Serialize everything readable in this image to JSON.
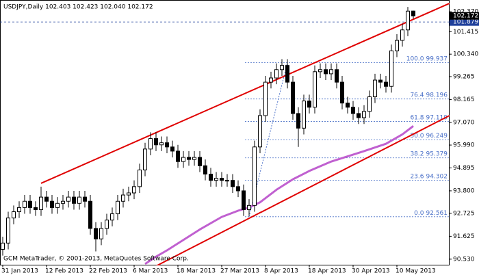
{
  "chart_data": {
    "type": "candlestick",
    "title": "USDJPY,Daily  102.403 102.423 102.040 102.172",
    "footer": "GCM MetaTrader, © 2001-2013, MetaQuotes Software Corp.",
    "open": [
      91.0,
      91.3,
      92.5,
      92.8,
      93.0,
      93.3,
      93.0,
      92.9,
      93.5,
      93.3,
      93.0,
      93.2,
      93.3,
      93.5,
      93.2,
      93.5,
      93.3,
      92.0,
      91.5,
      92.0,
      92.4,
      92.7,
      93.3,
      93.6,
      93.7,
      94.0,
      94.8,
      95.8,
      96.3,
      96.0,
      96.1,
      95.9,
      95.7,
      95.2,
      95.4,
      95.3,
      95.4,
      95.0,
      94.6,
      94.3,
      94.4,
      94.3,
      94.3,
      94.0,
      93.8,
      92.9,
      93.1,
      95.9,
      97.4,
      99.0,
      99.2,
      99.6,
      99.8,
      99.0,
      97.5,
      96.8,
      98.1,
      97.8,
      99.5,
      99.6,
      99.4,
      99.6,
      99.0,
      98.0,
      97.8,
      97.5,
      97.3,
      97.6,
      98.3,
      99.1,
      99.0,
      98.8,
      100.5,
      101.0,
      101.5,
      102.403
    ],
    "high": [
      91.6,
      92.8,
      93.1,
      93.3,
      93.6,
      93.6,
      93.3,
      94.0,
      93.8,
      93.6,
      93.5,
      93.6,
      93.8,
      93.8,
      93.8,
      93.8,
      93.6,
      92.3,
      92.3,
      92.7,
      93.0,
      93.6,
      93.9,
      94.0,
      94.3,
      95.1,
      96.1,
      96.6,
      96.6,
      96.4,
      96.4,
      96.2,
      96.0,
      95.7,
      95.7,
      95.7,
      95.7,
      95.3,
      94.9,
      94.7,
      94.7,
      94.6,
      94.6,
      94.3,
      94.1,
      93.4,
      96.2,
      97.7,
      99.3,
      99.5,
      99.9,
      100.1,
      100.1,
      99.3,
      97.8,
      98.4,
      98.4,
      99.8,
      99.9,
      99.9,
      99.9,
      99.9,
      99.3,
      98.3,
      98.1,
      97.8,
      97.9,
      98.6,
      99.4,
      99.4,
      99.3,
      100.8,
      101.3,
      101.8,
      102.6,
      102.423
    ],
    "low": [
      90.7,
      91.0,
      92.2,
      92.5,
      92.7,
      92.7,
      92.6,
      92.6,
      93.0,
      92.7,
      92.7,
      92.9,
      93.0,
      92.9,
      92.9,
      93.0,
      91.7,
      90.9,
      91.2,
      91.7,
      92.1,
      92.4,
      93.0,
      93.3,
      93.4,
      93.7,
      94.5,
      95.5,
      95.7,
      95.7,
      95.6,
      95.4,
      94.9,
      94.9,
      95.0,
      95.0,
      94.7,
      94.3,
      94.0,
      94.0,
      94.0,
      94.0,
      93.7,
      93.5,
      92.6,
      92.6,
      92.8,
      95.6,
      97.1,
      98.7,
      98.9,
      99.3,
      98.7,
      97.2,
      95.9,
      96.5,
      97.5,
      97.5,
      99.2,
      99.1,
      99.1,
      98.7,
      97.7,
      97.5,
      97.2,
      97.0,
      97.0,
      97.3,
      98.0,
      98.7,
      98.5,
      98.5,
      100.2,
      100.7,
      101.2,
      102.04
    ],
    "close": [
      91.3,
      92.5,
      92.8,
      93.0,
      93.3,
      93.0,
      92.9,
      93.5,
      93.3,
      93.0,
      93.2,
      93.3,
      93.5,
      93.2,
      93.5,
      93.3,
      92.0,
      91.5,
      92.0,
      92.4,
      92.7,
      93.3,
      93.6,
      93.7,
      94.0,
      94.8,
      95.8,
      96.3,
      96.0,
      96.1,
      95.9,
      95.7,
      95.2,
      95.4,
      95.3,
      95.4,
      95.0,
      94.6,
      94.3,
      94.4,
      94.3,
      94.3,
      94.0,
      93.8,
      92.9,
      93.1,
      95.9,
      97.4,
      99.0,
      99.2,
      99.6,
      99.8,
      99.0,
      97.5,
      96.8,
      98.1,
      97.8,
      99.5,
      99.6,
      99.4,
      99.6,
      99.0,
      98.0,
      97.8,
      97.5,
      97.3,
      97.6,
      98.3,
      99.1,
      99.0,
      98.8,
      100.5,
      101.0,
      101.5,
      102.4,
      102.172
    ],
    "xticks": [
      {
        "value": 0,
        "label": "31 Jan 2013"
      },
      {
        "value": 8,
        "label": "12 Feb 2013"
      },
      {
        "value": 16,
        "label": "22 Feb 2013"
      },
      {
        "value": 24,
        "label": "6 Mar 2013"
      },
      {
        "value": 32,
        "label": "18 Mar 2013"
      },
      {
        "value": 40,
        "label": "27 Mar 2013"
      },
      {
        "value": 48,
        "label": "8 Apr 2013"
      },
      {
        "value": 56,
        "label": "18 Apr 2013"
      },
      {
        "value": 64,
        "label": "30 Apr 2013"
      },
      {
        "value": 72,
        "label": "10 May 2013"
      }
    ],
    "ylim": [
      90.23,
      102.67
    ],
    "yticks": [
      {
        "value": 102.37,
        "label": "102.370"
      },
      101.415,
      {
        "value": 100.34,
        "label": "100.340"
      },
      99.265,
      98.165,
      {
        "value": 97.07,
        "label": "97.070"
      },
      {
        "value": 95.99,
        "label": "95.990"
      },
      94.895,
      {
        "value": 93.8,
        "label": "93.800"
      },
      92.725,
      91.625,
      {
        "value": 90.53,
        "label": "90.530"
      }
    ],
    "bull_color": "#ffffff",
    "bear_color": "#000000",
    "moving_average": {
      "color": "#c060d0",
      "x": [
        26,
        28,
        30,
        33,
        36,
        40,
        43,
        45,
        47,
        50,
        53,
        56,
        60,
        63,
        66,
        70,
        73,
        75
      ],
      "values": [
        90.3,
        90.65,
        90.95,
        91.45,
        91.95,
        92.55,
        92.85,
        93.0,
        93.25,
        93.85,
        94.35,
        94.75,
        95.2,
        95.45,
        95.7,
        96.05,
        96.5,
        96.9
      ]
    },
    "trend_lines": [
      {
        "color": "#e00000",
        "x": [
          7,
          81.6
        ],
        "values": [
          94.16,
          102.77
        ]
      },
      {
        "color": "#e00000",
        "x": [
          28,
          81.6
        ],
        "values": [
          90.2,
          97.4
        ]
      }
    ],
    "fibonacci": {
      "color": "#4a70c8",
      "x": [
        45,
        52
      ],
      "values": [
        92.561,
        99.937
      ],
      "levels": [
        {
          "level": "100.0",
          "price": 99.937
        },
        {
          "level": "76.4",
          "price": 98.196
        },
        {
          "level": "61.8",
          "price": 97.119
        },
        {
          "level": "50.0",
          "price": 96.249
        },
        {
          "level": "38.2",
          "price": 95.379
        },
        {
          "level": "23.6",
          "price": 94.302
        },
        {
          "level": "0.0",
          "price": 92.561
        }
      ]
    },
    "ask_line": {
      "value": 101.879,
      "color": "#1f3f9a"
    },
    "bid": {
      "value": 102.172,
      "color": "#000000"
    }
  }
}
